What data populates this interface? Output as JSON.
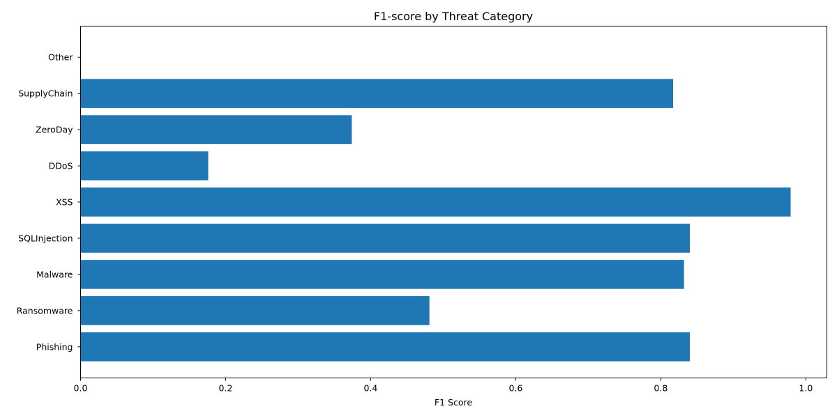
{
  "chart_data": {
    "type": "bar",
    "orientation": "horizontal",
    "title": "F1-score by Threat Category",
    "xlabel": "F1 Score",
    "ylabel": "",
    "categories": [
      "Phishing",
      "Ransomware",
      "Malware",
      "SQLInjection",
      "XSS",
      "DDoS",
      "ZeroDay",
      "SupplyChain",
      "Other"
    ],
    "values": [
      0.84,
      0.481,
      0.832,
      0.84,
      0.979,
      0.176,
      0.374,
      0.817,
      0.0
    ],
    "xlim": [
      0,
      1.029
    ],
    "xticks": [
      0.0,
      0.2,
      0.4,
      0.6,
      0.8,
      1.0
    ],
    "xtick_labels": [
      "0.0",
      "0.2",
      "0.4",
      "0.6",
      "0.8",
      "1.0"
    ],
    "grid": false,
    "bar_color": "#1f77b4"
  }
}
